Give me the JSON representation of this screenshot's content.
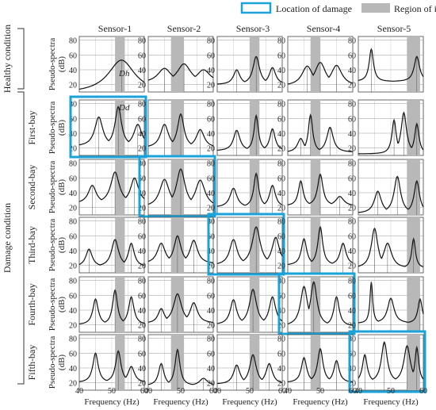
{
  "legend": {
    "damage_label": "Location of damage",
    "roi_label": "Region of interest",
    "damage_color": "#1aa3d9",
    "roi_color": "#b8b8b8"
  },
  "sensors": [
    "Sensor-1",
    "Sensor-2",
    "Sensor-3",
    "Sensor-4",
    "Sensor-5"
  ],
  "group_labels": {
    "healthy": "Healthy condition",
    "damage": "Damage condition"
  },
  "rows": [
    {
      "label": "",
      "damage_sensor": null
    },
    {
      "label": "First-bay",
      "damage_sensor": 1
    },
    {
      "label": "Second-bay",
      "damage_sensor": 2
    },
    {
      "label": "Third-bay",
      "damage_sensor": 3
    },
    {
      "label": "Fourth-bay",
      "damage_sensor": 4
    },
    {
      "label": "Fifth-bay",
      "damage_sensor": 5
    }
  ],
  "ylabel_line1": "Pseudo-spectra",
  "ylabel_line2": "(dB)",
  "xlabel": "Frequency (Hz)",
  "annotations": {
    "dh": "Dh",
    "dd": "Dd"
  },
  "chart_data": {
    "type": "line",
    "title": "",
    "xlabel": "Frequency (Hz)",
    "ylabel": "Pseudo-spectra (dB)",
    "xlim": [
      40,
      60
    ],
    "ylim": [
      10,
      85
    ],
    "xticks": [
      40,
      50,
      60
    ],
    "yticks": [
      20,
      40,
      60,
      80
    ],
    "regions_of_interest_hz": [
      [
        51,
        54
      ],
      [
        47,
        51
      ],
      [
        50,
        53
      ],
      [
        47,
        50
      ],
      [
        55,
        59
      ]
    ],
    "panels": [
      [
        {
          "peaks": [
            [
              53,
              53,
              5
            ]
          ],
          "floor": 8
        },
        {
          "peaks": [
            [
              45,
              42,
              2.5
            ],
            [
              51,
              48,
              2.5
            ],
            [
              57,
              40,
              2.5
            ]
          ],
          "floor": 22
        },
        {
          "peaks": [
            [
              46,
              40,
              1.2
            ],
            [
              52,
              58,
              1.2
            ],
            [
              57,
              43,
              1.2
            ]
          ],
          "floor": 20
        },
        {
          "peaks": [
            [
              46,
              45,
              2
            ],
            [
              50,
              50,
              2
            ],
            [
              55,
              46,
              2
            ]
          ],
          "floor": 18
        },
        {
          "peaks": [
            [
              44,
              68,
              0.8
            ],
            [
              58,
              58,
              1
            ]
          ],
          "floor": 24
        }
      ],
      [
        {
          "peaks": [
            [
              46,
              62,
              1.5
            ],
            [
              52,
              76,
              1.2
            ],
            [
              58,
              52,
              1.5
            ]
          ],
          "floor": 22
        },
        {
          "peaks": [
            [
              45,
              52,
              1.5
            ],
            [
              50,
              66,
              1.2
            ],
            [
              56,
              45,
              1.5
            ]
          ],
          "floor": 20
        },
        {
          "peaks": [
            [
              46,
              44,
              1.2
            ],
            [
              52,
              64,
              0.8
            ],
            [
              57,
              46,
              1
            ]
          ],
          "floor": 16
        },
        {
          "peaks": [
            [
              44,
              33,
              1.2
            ],
            [
              47,
              65,
              0.8
            ],
            [
              53,
              48,
              1.2
            ]
          ],
          "floor": 14
        },
        {
          "peaks": [
            [
              51,
              58,
              0.8
            ],
            [
              54,
              68,
              1
            ],
            [
              58,
              53,
              0.8
            ]
          ],
          "floor": 12
        }
      ],
      [
        {
          "peaks": [
            [
              44,
              50,
              1.5
            ],
            [
              51,
              68,
              1.6
            ],
            [
              57,
              60,
              1.5
            ]
          ],
          "floor": 25
        },
        {
          "peaks": [
            [
              45,
              58,
              1.8
            ],
            [
              50,
              72,
              1.6
            ],
            [
              56,
              57,
              1.8
            ]
          ],
          "floor": 20
        },
        {
          "peaks": [
            [
              45,
              46,
              1.3
            ],
            [
              52,
              66,
              0.9
            ],
            [
              57,
              50,
              1.1
            ]
          ],
          "floor": 20
        },
        {
          "peaks": [
            [
              44,
              56,
              0.9
            ],
            [
              50,
              65,
              1
            ],
            [
              56,
              35,
              1.5
            ]
          ],
          "floor": 22
        },
        {
          "peaks": [
            [
              46,
              42,
              1.3
            ],
            [
              52,
              62,
              1.2
            ],
            [
              58,
              56,
              1
            ]
          ],
          "floor": 12
        }
      ],
      [
        {
          "peaks": [
            [
              43,
              42,
              1.2
            ],
            [
              51,
              55,
              1.3
            ],
            [
              56,
              50,
              1.1
            ]
          ],
          "floor": 18
        },
        {
          "peaks": [
            [
              44,
              50,
              1.5
            ],
            [
              49,
              60,
              1.3
            ],
            [
              54,
              54,
              1.4
            ]
          ],
          "floor": 22
        },
        {
          "peaks": [
            [
              45,
              55,
              1.4
            ],
            [
              52,
              72,
              1.5
            ],
            [
              58,
              58,
              1.4
            ]
          ],
          "floor": 20
        },
        {
          "peaks": [
            [
              45,
              56,
              1
            ],
            [
              50,
              72,
              0.9
            ],
            [
              57,
              50,
              1.1
            ]
          ],
          "floor": 20
        },
        {
          "peaks": [
            [
              45,
              70,
              1.2
            ],
            [
              49,
              50,
              1.5
            ],
            [
              57,
              56,
              0.7
            ]
          ],
          "floor": 16
        }
      ],
      [
        {
          "peaks": [
            [
              45,
              55,
              1
            ],
            [
              51,
              67,
              0.9
            ],
            [
              56,
              58,
              1
            ]
          ],
          "floor": 20
        },
        {
          "peaks": [
            [
              44,
              42,
              1.2
            ],
            [
              49,
              62,
              1.5
            ],
            [
              54,
              50,
              1.4
            ]
          ],
          "floor": 22
        },
        {
          "peaks": [
            [
              45,
              54,
              1.2
            ],
            [
              51,
              68,
              1.3
            ],
            [
              57,
              58,
              1.2
            ]
          ],
          "floor": 20
        },
        {
          "peaks": [
            [
              45,
              72,
              1.3
            ],
            [
              48,
              78,
              1.2
            ],
            [
              55,
              58,
              1
            ]
          ],
          "floor": 18
        },
        {
          "peaks": [
            [
              44,
              78,
              0.5
            ],
            [
              50,
              56,
              1.2
            ],
            [
              59,
              55,
              0.8
            ]
          ],
          "floor": 22
        }
      ],
      [
        {
          "peaks": [
            [
              45,
              60,
              1
            ],
            [
              52,
              63,
              1
            ],
            [
              56,
              42,
              1.2
            ]
          ],
          "floor": 20
        },
        {
          "peaks": [
            [
              44,
              46,
              1
            ],
            [
              49,
              65,
              0.9
            ],
            [
              57,
              26,
              1.5
            ]
          ],
          "floor": 16
        },
        {
          "peaks": [
            [
              46,
              44,
              1.2
            ],
            [
              51,
              58,
              1.2
            ],
            [
              56,
              46,
              1.2
            ]
          ],
          "floor": 18
        },
        {
          "peaks": [
            [
              45,
              54,
              1
            ],
            [
              50,
              66,
              1
            ],
            [
              55,
              50,
              1
            ]
          ],
          "floor": 20
        },
        {
          "peaks": [
            [
              42,
              58,
              0.9
            ],
            [
              48,
              75,
              1.1
            ],
            [
              55,
              70,
              1.2
            ],
            [
              58,
              68,
              0.7
            ]
          ],
          "floor": 20
        }
      ]
    ]
  }
}
